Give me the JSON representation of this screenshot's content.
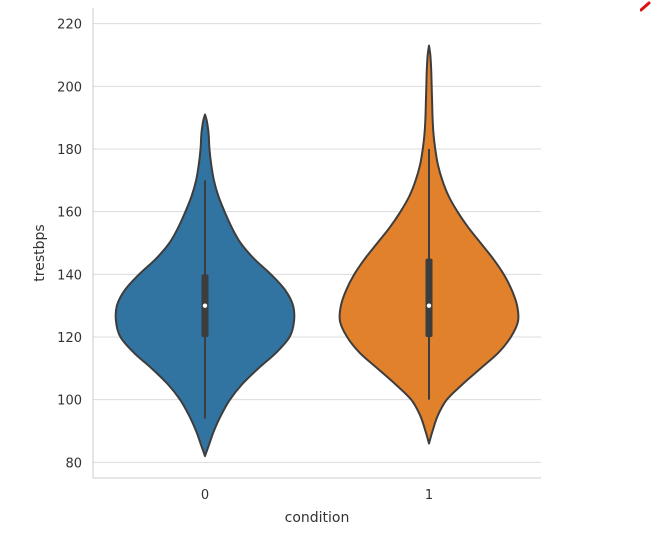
{
  "chart_data": {
    "type": "violin",
    "xlabel": "condition",
    "ylabel": "trestbps",
    "categories": [
      "0",
      "1"
    ],
    "ylim": [
      75,
      225
    ],
    "yticks": [
      80,
      100,
      120,
      140,
      160,
      180,
      200,
      220
    ],
    "grid": true,
    "series": [
      {
        "category": "0",
        "color": "#3274a1",
        "min": 94,
        "q1": 120,
        "median": 130,
        "q3": 140,
        "max": 170,
        "kde_range": [
          82,
          191
        ],
        "density": [
          [
            82,
            0.0
          ],
          [
            86,
            0.05
          ],
          [
            90,
            0.1
          ],
          [
            95,
            0.18
          ],
          [
            100,
            0.28
          ],
          [
            105,
            0.42
          ],
          [
            110,
            0.6
          ],
          [
            115,
            0.8
          ],
          [
            120,
            0.95
          ],
          [
            125,
            1.0
          ],
          [
            130,
            0.99
          ],
          [
            135,
            0.9
          ],
          [
            140,
            0.74
          ],
          [
            145,
            0.55
          ],
          [
            150,
            0.4
          ],
          [
            155,
            0.3
          ],
          [
            160,
            0.22
          ],
          [
            165,
            0.15
          ],
          [
            170,
            0.1
          ],
          [
            175,
            0.07
          ],
          [
            180,
            0.05
          ],
          [
            185,
            0.04
          ],
          [
            189,
            0.02
          ],
          [
            191,
            0.0
          ]
        ]
      },
      {
        "category": "1",
        "color": "#e1812c",
        "min": 100,
        "q1": 120,
        "median": 130,
        "q3": 145,
        "max": 180,
        "kde_range": [
          86,
          213
        ],
        "density": [
          [
            86,
            0.0
          ],
          [
            90,
            0.04
          ],
          [
            95,
            0.1
          ],
          [
            100,
            0.2
          ],
          [
            105,
            0.38
          ],
          [
            110,
            0.58
          ],
          [
            115,
            0.78
          ],
          [
            120,
            0.92
          ],
          [
            125,
            1.0
          ],
          [
            130,
            0.99
          ],
          [
            135,
            0.93
          ],
          [
            140,
            0.84
          ],
          [
            145,
            0.72
          ],
          [
            150,
            0.58
          ],
          [
            155,
            0.44
          ],
          [
            160,
            0.32
          ],
          [
            165,
            0.22
          ],
          [
            170,
            0.15
          ],
          [
            175,
            0.1
          ],
          [
            180,
            0.07
          ],
          [
            185,
            0.05
          ],
          [
            190,
            0.04
          ],
          [
            195,
            0.035
          ],
          [
            200,
            0.03
          ],
          [
            205,
            0.025
          ],
          [
            210,
            0.015
          ],
          [
            213,
            0.0
          ]
        ]
      }
    ]
  }
}
